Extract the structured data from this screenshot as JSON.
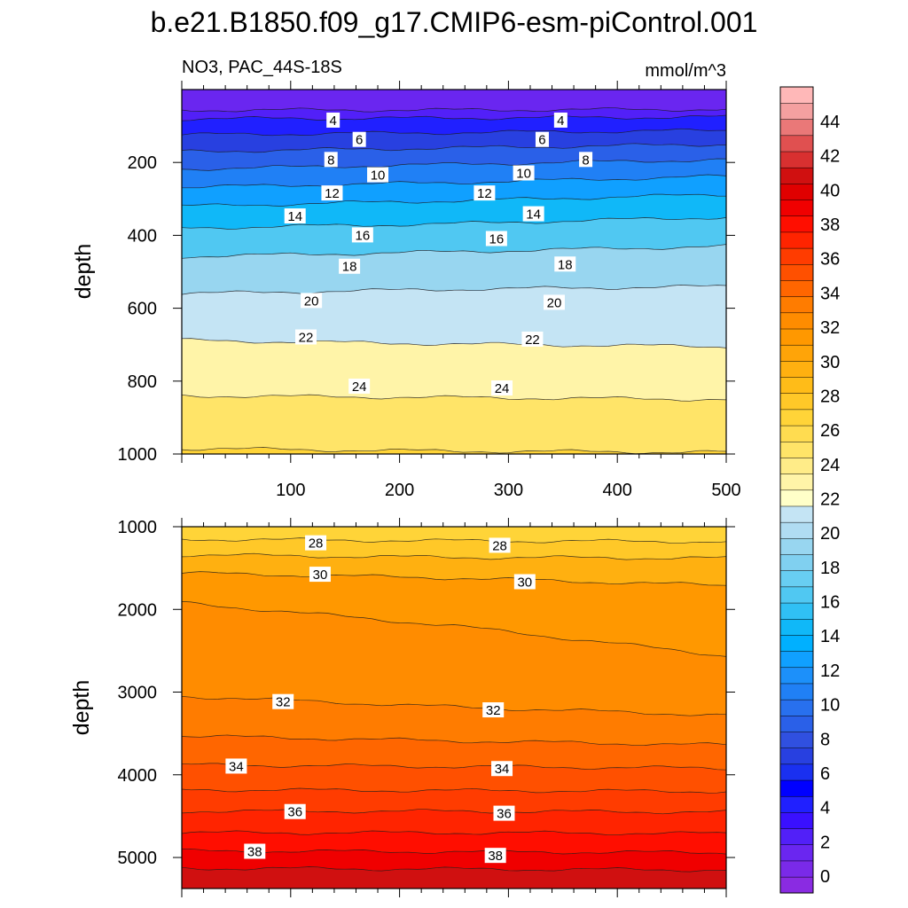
{
  "title": "b.e21.B1850.f09_g17.CMIP6-esm-piControl.001",
  "variable_label": "NO3, PAC_44S-18S",
  "units_label": "mmol/m^3",
  "chart_data": [
    {
      "type": "heatmap",
      "panel": "upper",
      "ylabel": "depth",
      "xlabel": "",
      "xlim": [
        0,
        500
      ],
      "ylim": [
        1000,
        0
      ],
      "x_ticks": [
        100,
        200,
        300,
        400,
        500
      ],
      "y_ticks": [
        200,
        400,
        600,
        800,
        1000
      ],
      "contour_lines": [
        {
          "level": 2,
          "depth": [
            56,
            56,
            54
          ]
        },
        {
          "level": 4,
          "depth": [
            80,
            78,
            75
          ]
        },
        {
          "level": 6,
          "depth": [
            124,
            118,
            112
          ]
        },
        {
          "level": 8,
          "depth": [
            170,
            160,
            150
          ]
        },
        {
          "level": 10,
          "depth": [
            218,
            205,
            192
          ]
        },
        {
          "level": 12,
          "depth": [
            268,
            255,
            238
          ]
        },
        {
          "level": 14,
          "depth": [
            320,
            305,
            288
          ]
        },
        {
          "level": 16,
          "depth": [
            380,
            368,
            350
          ]
        },
        {
          "level": 18,
          "depth": [
            458,
            445,
            430
          ]
        },
        {
          "level": 20,
          "depth": [
            560,
            548,
            540
          ]
        },
        {
          "level": 22,
          "depth": [
            688,
            698,
            705
          ]
        },
        {
          "level": 24,
          "depth": [
            840,
            845,
            850
          ]
        },
        {
          "level": 26,
          "depth": [
            985,
            992,
            995
          ]
        }
      ],
      "contour_labels": [
        {
          "text": "4",
          "x": 139,
          "depth": 85
        },
        {
          "text": "4",
          "x": 348,
          "depth": 85
        },
        {
          "text": "6",
          "x": 163,
          "depth": 138
        },
        {
          "text": "6",
          "x": 331,
          "depth": 138
        },
        {
          "text": "8",
          "x": 137,
          "depth": 193
        },
        {
          "text": "8",
          "x": 371,
          "depth": 193
        },
        {
          "text": "10",
          "x": 180,
          "depth": 235
        },
        {
          "text": "10",
          "x": 314,
          "depth": 230
        },
        {
          "text": "12",
          "x": 138,
          "depth": 285
        },
        {
          "text": "12",
          "x": 278,
          "depth": 285
        },
        {
          "text": "14",
          "x": 104,
          "depth": 348
        },
        {
          "text": "14",
          "x": 323,
          "depth": 342
        },
        {
          "text": "16",
          "x": 166,
          "depth": 400
        },
        {
          "text": "16",
          "x": 289,
          "depth": 410
        },
        {
          "text": "18",
          "x": 154,
          "depth": 486
        },
        {
          "text": "18",
          "x": 352,
          "depth": 480
        },
        {
          "text": "20",
          "x": 119,
          "depth": 580
        },
        {
          "text": "20",
          "x": 342,
          "depth": 585
        },
        {
          "text": "22",
          "x": 114,
          "depth": 680
        },
        {
          "text": "22",
          "x": 322,
          "depth": 686
        },
        {
          "text": "24",
          "x": 163,
          "depth": 815
        },
        {
          "text": "24",
          "x": 294,
          "depth": 820
        }
      ]
    },
    {
      "type": "heatmap",
      "panel": "lower",
      "ylabel": "depth",
      "xlabel": "",
      "xlim": [
        0,
        500
      ],
      "ylim": [
        5375,
        1000
      ],
      "x_ticks": [
        100,
        200,
        300,
        400,
        500
      ],
      "y_ticks": [
        1000,
        2000,
        3000,
        4000,
        5000
      ],
      "contour_lines": [
        {
          "level": 27,
          "depth": [
            1150,
            1170,
            1180
          ]
        },
        {
          "level": 28,
          "depth": [
            1340,
            1370,
            1380
          ]
        },
        {
          "level": 30,
          "depth": [
            1560,
            1620,
            1710
          ]
        },
        {
          "level": 31,
          "depth": [
            1920,
            2200,
            2560
          ]
        },
        {
          "level": 32,
          "depth": [
            3050,
            3180,
            3280
          ]
        },
        {
          "level": 33,
          "depth": [
            3530,
            3590,
            3640
          ]
        },
        {
          "level": 34,
          "depth": [
            3880,
            3900,
            3920
          ]
        },
        {
          "level": 35,
          "depth": [
            4180,
            4190,
            4200
          ]
        },
        {
          "level": 36,
          "depth": [
            4440,
            4440,
            4450
          ]
        },
        {
          "level": 37,
          "depth": [
            4700,
            4700,
            4710
          ]
        },
        {
          "level": 38,
          "depth": [
            4920,
            4930,
            4940
          ]
        },
        {
          "level": 39,
          "depth": [
            5130,
            5140,
            5150
          ]
        }
      ],
      "contour_labels": [
        {
          "text": "28",
          "x": 123,
          "depth": 1200
        },
        {
          "text": "28",
          "x": 292,
          "depth": 1230
        },
        {
          "text": "30",
          "x": 127,
          "depth": 1580
        },
        {
          "text": "30",
          "x": 315,
          "depth": 1670
        },
        {
          "text": "32",
          "x": 93,
          "depth": 3120
        },
        {
          "text": "32",
          "x": 286,
          "depth": 3220
        },
        {
          "text": "34",
          "x": 50,
          "depth": 3900
        },
        {
          "text": "34",
          "x": 294,
          "depth": 3930
        },
        {
          "text": "36",
          "x": 104,
          "depth": 4450
        },
        {
          "text": "36",
          "x": 296,
          "depth": 4470
        },
        {
          "text": "38",
          "x": 67,
          "depth": 4930
        },
        {
          "text": "38",
          "x": 288,
          "depth": 4980
        }
      ]
    }
  ],
  "colorbar": {
    "labels": [
      "0",
      "2",
      "4",
      "6",
      "8",
      "10",
      "12",
      "14",
      "16",
      "18",
      "20",
      "22",
      "24",
      "26",
      "28",
      "30",
      "32",
      "34",
      "36",
      "38",
      "40",
      "42",
      "44"
    ],
    "colors": [
      "#8a2be2",
      "#7a2ae8",
      "#6a26f0",
      "#5220f8",
      "#3a10ff",
      "#2020ff",
      "#0000ff",
      "#1a30f0",
      "#2840e0",
      "#3050e0",
      "#2a60e8",
      "#2870ee",
      "#2080f5",
      "#1c90fa",
      "#10a0ff",
      "#00b0ff",
      "#10b8f8",
      "#30c0f4",
      "#50c8f2",
      "#68cef2",
      "#80d0f0",
      "#98d6f0",
      "#b0dcf2",
      "#c4e4f4",
      "#ffffc8",
      "#fff4a8",
      "#ffec88",
      "#ffe468",
      "#ffdc50",
      "#ffd438",
      "#ffc828",
      "#ffbc18",
      "#ffb010",
      "#ffa408",
      "#ff9800",
      "#ff8c00",
      "#ff7c00",
      "#ff6600",
      "#ff5000",
      "#ff3c00",
      "#ff2400",
      "#ff0e00",
      "#f00000",
      "#e00000",
      "#d01010",
      "#d83030",
      "#e05050",
      "#ea7878",
      "#f4a0a0",
      "#ffb8b8"
    ]
  }
}
